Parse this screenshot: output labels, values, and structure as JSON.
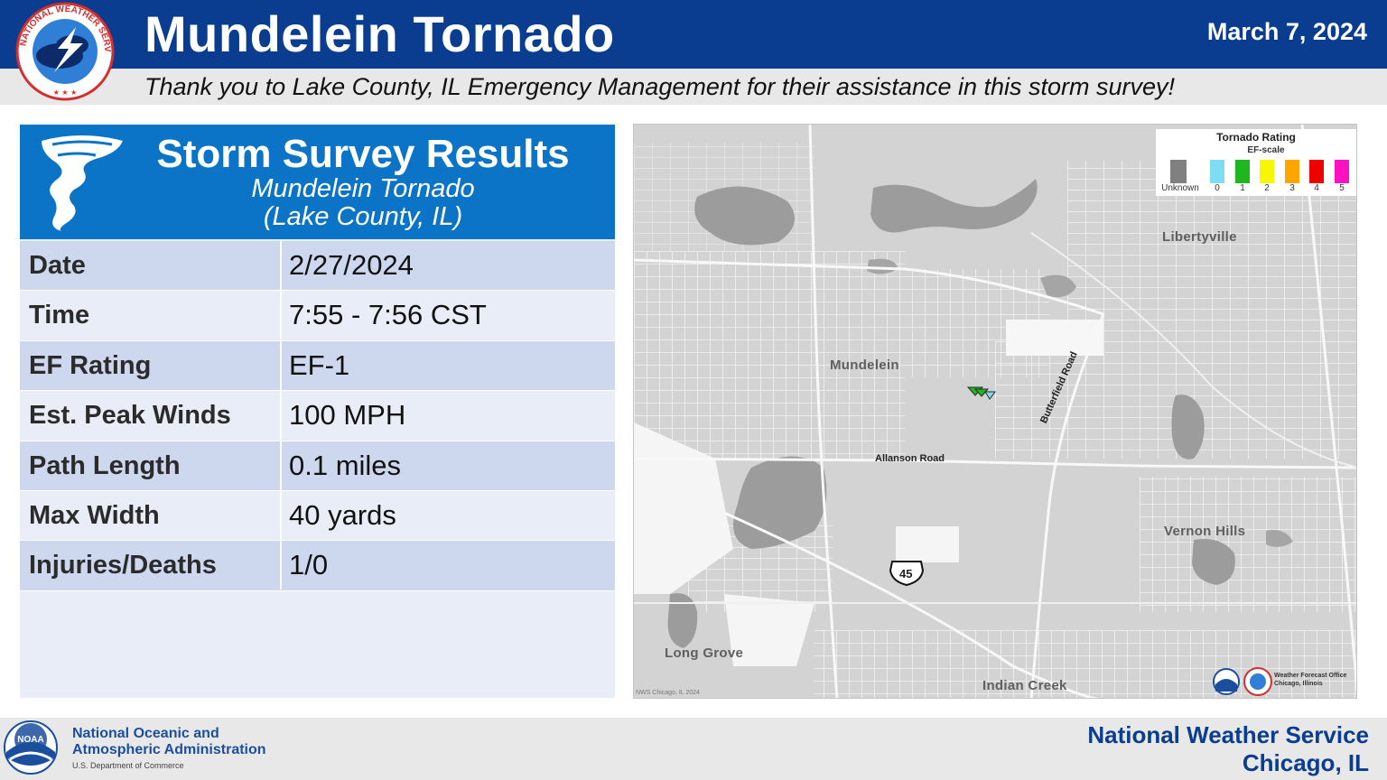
{
  "header": {
    "title": "Mundelein Tornado",
    "date": "March 7, 2024",
    "thanks": "Thank you to Lake County, IL Emergency Management for their assistance in this storm survey!",
    "logo_text": "NATIONAL WEATHER SERVICE",
    "logo_icon": "nws-logo-icon",
    "colors": {
      "header_blue": "#0a3d8f",
      "panel_blue": "#0b74c6"
    }
  },
  "results": {
    "title": "Storm Survey Results",
    "subtitle_line1": "Mundelein Tornado",
    "subtitle_line2": "(Lake County, IL)",
    "icon": "tornado-icon",
    "rows": [
      {
        "label": "Date",
        "value": "2/27/2024"
      },
      {
        "label": "Time",
        "value": "7:55 - 7:56 CST"
      },
      {
        "label": "EF Rating",
        "value": "EF-1"
      },
      {
        "label": "Est. Peak Winds",
        "value": "100 MPH"
      },
      {
        "label": "Path Length",
        "value": "0.1 miles"
      },
      {
        "label": "Max Width",
        "value": "40 yards"
      },
      {
        "label": "Injuries/Deaths",
        "value": "1/0"
      }
    ]
  },
  "map": {
    "legend": {
      "title": "Tornado Rating",
      "scale": "EF-scale",
      "items": [
        {
          "label": "Unknown",
          "color": "#808080"
        },
        {
          "label": "0",
          "color": "#7fdcf5"
        },
        {
          "label": "1",
          "color": "#1fb71f"
        },
        {
          "label": "2",
          "color": "#f7f700"
        },
        {
          "label": "3",
          "color": "#ffa500"
        },
        {
          "label": "4",
          "color": "#ee0000"
        },
        {
          "label": "5",
          "color": "#ff10c0"
        }
      ]
    },
    "places": {
      "libertyville": "Libertyville",
      "mundelein": "Mundelein",
      "vernon_hills": "Vernon Hills",
      "long_grove": "Long Grove",
      "indian_creek": "Indian Creek"
    },
    "roads": {
      "allanson": "Allanson Road",
      "butterfield": "Butterfield Road",
      "us45": "45"
    },
    "credit": "NWS Chicago, IL 2024",
    "wfo_line1": "Weather Forecast Office",
    "wfo_line2": "Chicago, Illinois"
  },
  "footer": {
    "noaa_line1": "National Oceanic and",
    "noaa_line2": "Atmospheric Administration",
    "noaa_dept": "U.S. Department of Commerce",
    "noaa_logo_text": "NOAA",
    "nws_line1": "National Weather Service",
    "nws_line2": "Chicago, IL"
  }
}
